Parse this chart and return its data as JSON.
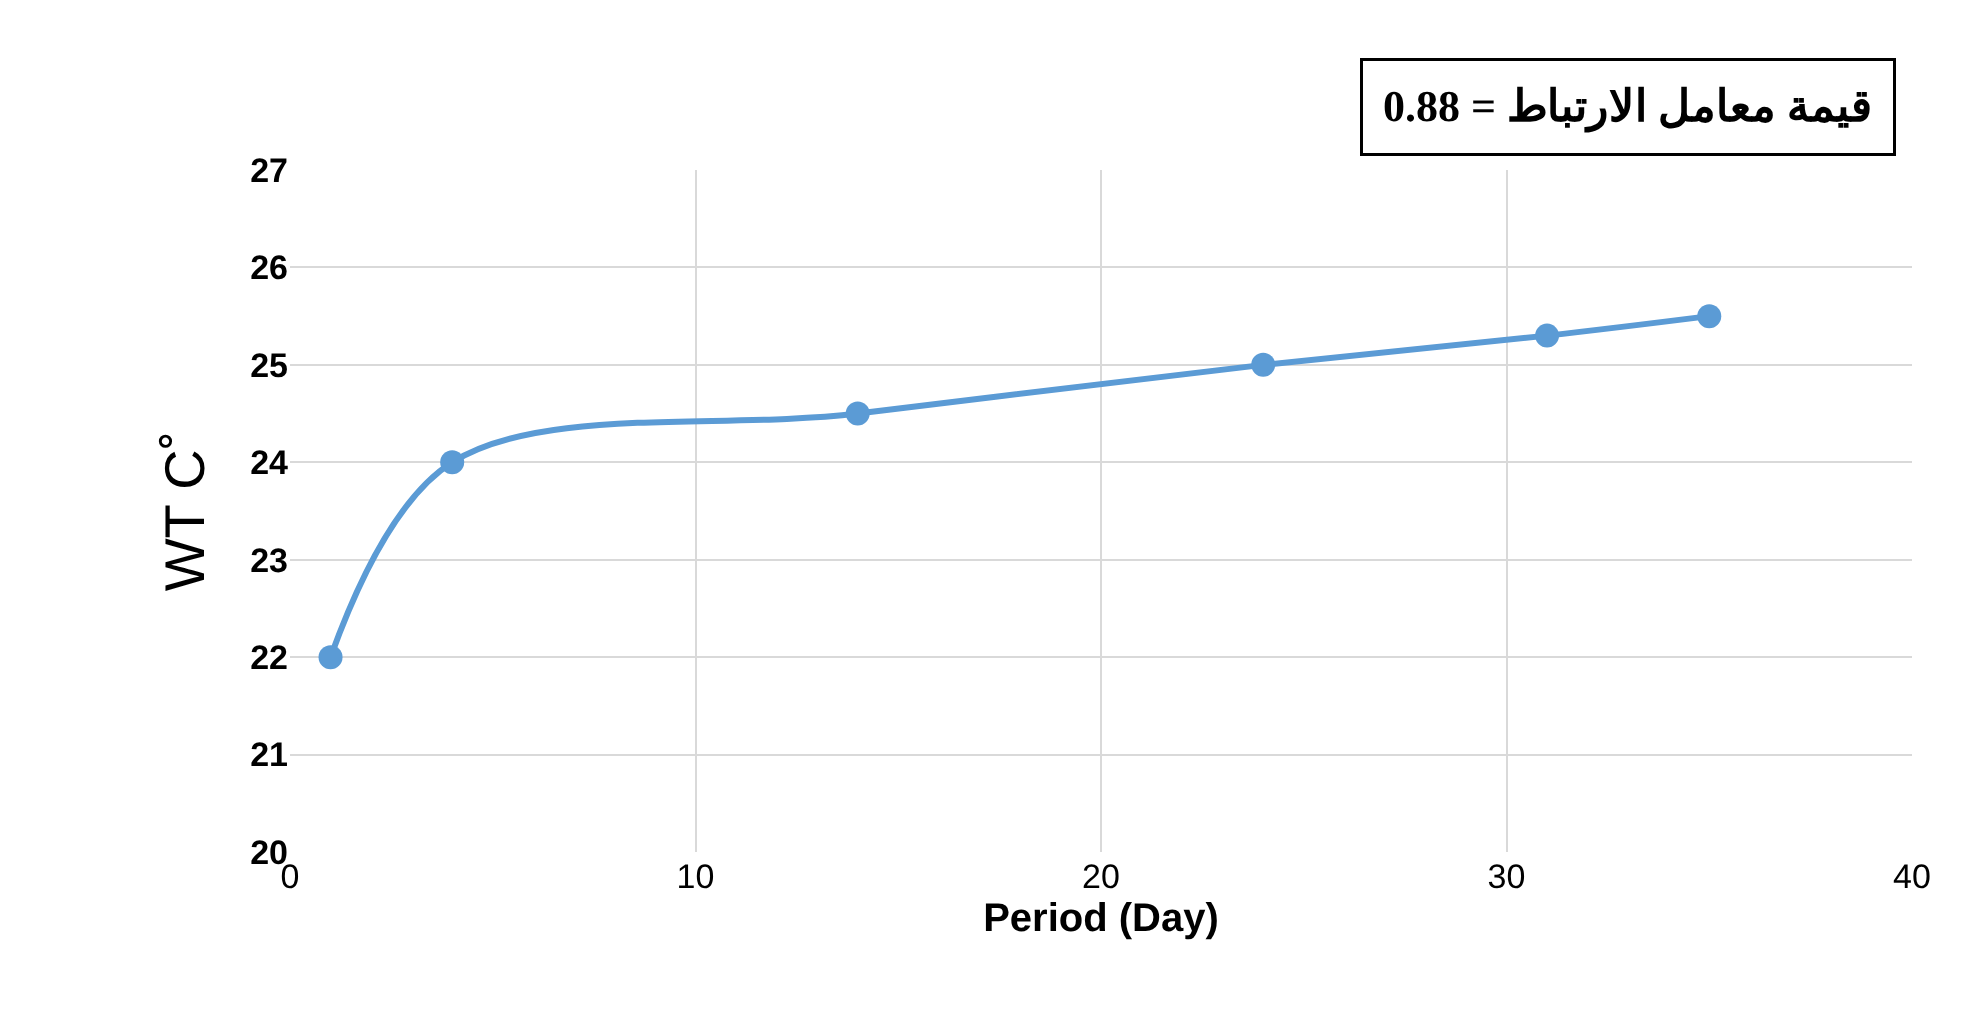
{
  "chart_data": {
    "type": "line",
    "xlabel": "Period (Day)",
    "ylabel": "WT C˚",
    "x": [
      1,
      4,
      14,
      24,
      31,
      35
    ],
    "series": [
      {
        "color": "#5b9bd5",
        "values": [
          22,
          24,
          24.5,
          25,
          25.3,
          25.5
        ]
      }
    ],
    "xlim": [
      0,
      40
    ],
    "xticks": [
      0,
      10,
      20,
      30,
      40
    ],
    "ylim": [
      20,
      27
    ],
    "yticks": [
      20,
      21,
      22,
      23,
      24,
      25,
      26,
      27
    ],
    "grid": true,
    "marker": "circle",
    "line_style": "solid",
    "annotations": [
      "قيمة معامل الارتباط = 0.88"
    ]
  }
}
